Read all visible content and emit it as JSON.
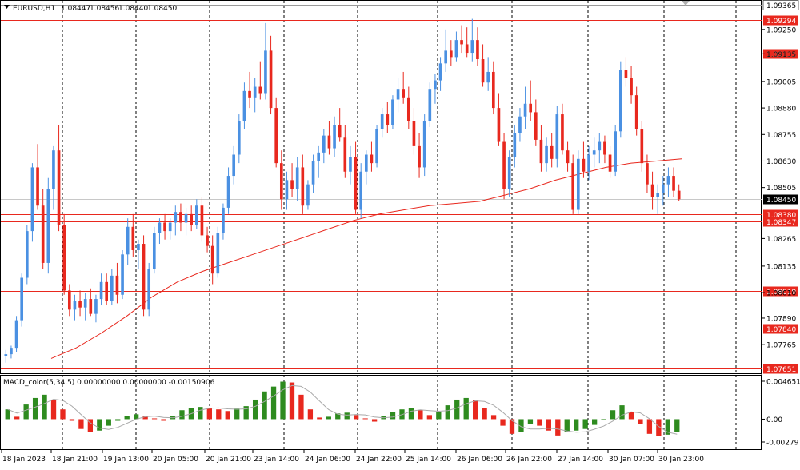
{
  "header": {
    "symbol": "EURUSD,H1",
    "open": "1.08447",
    "high": "1.08456",
    "low": "1.08440",
    "close": "1.08450"
  },
  "macd": {
    "title": "MACD_color(5,34,5) 0.00000000 0.00000000 -0.00150906",
    "ticks": [
      "0.0046515",
      "0.00",
      "-0.0027973"
    ],
    "values": [
      0.0012,
      0.0003,
      0.0018,
      0.0026,
      0.003,
      0.0024,
      0.0012,
      -0.0002,
      -0.0012,
      -0.0016,
      -0.0014,
      -0.0008,
      -0.0002,
      0.0004,
      0.0006,
      0.0004,
      0.0001,
      -0.0002,
      0.0004,
      0.0011,
      0.0014,
      0.0015,
      0.0014,
      0.0012,
      0.001,
      0.0013,
      0.0016,
      0.0024,
      0.0034,
      0.004,
      0.0046,
      0.0045,
      0.003,
      0.0012,
      0.0002,
      0.0003,
      0.0007,
      0.0008,
      0.0005,
      0.0001,
      -0.0003,
      0.0004,
      0.0009,
      0.0012,
      0.0014,
      0.0011,
      0.0005,
      0.0009,
      0.0017,
      0.0024,
      0.0026,
      0.0023,
      0.0014,
      0.0005,
      -0.0008,
      -0.0018,
      -0.0016,
      -0.0006,
      -0.0008,
      -0.0014,
      -0.002,
      -0.0016,
      -0.0014,
      -0.0012,
      -0.0007,
      -0.0001,
      0.0011,
      0.0017,
      0.0009,
      -0.0006,
      -0.0018,
      -0.0021,
      -0.0019,
      -0.0016
    ],
    "colors": {
      "up": "#2e8b1f",
      "down": "#e8281e",
      "signal": "#a9a9a9"
    }
  },
  "price_axis": {
    "ticks": [
      "1.09250",
      "1.09135",
      "1.09005",
      "1.08880",
      "1.08755",
      "1.08630",
      "1.08505",
      "1.08265",
      "1.08135",
      "1.08010",
      "1.07890",
      "1.07765"
    ],
    "range": [
      1.0763,
      1.09385
    ]
  },
  "hlines": [
    {
      "price": 1.09365,
      "label": "1.09365",
      "style": "gray"
    },
    {
      "price": 1.09294,
      "label": "1.09294",
      "style": "red"
    },
    {
      "price": 1.09135,
      "label": "1.09135",
      "style": "red"
    },
    {
      "price": 1.0838,
      "label": "1.08380",
      "style": "red"
    },
    {
      "price": 1.08347,
      "label": "1.08347",
      "style": "red"
    },
    {
      "price": 1.08019,
      "label": "1.08019",
      "style": "red"
    },
    {
      "price": 1.0784,
      "label": "1.07840",
      "style": "red"
    },
    {
      "price": 1.07651,
      "label": "1.07651",
      "style": "red"
    }
  ],
  "current_price": {
    "price": 1.0845,
    "label": "1.08450"
  },
  "time_axis": [
    "18 Jan 2023",
    "18 Jan 21:00",
    "19 Jan 13:00",
    "20 Jan 05:00",
    "20 Jan 21:00",
    "23 Jan 14:00",
    "24 Jan 06:00",
    "24 Jan 22:00",
    "25 Jan 14:00",
    "26 Jan 06:00",
    "26 Jan 22:00",
    "27 Jan 14:00",
    "30 Jan 07:00",
    "30 Jan 23:00"
  ],
  "colors": {
    "bull": "#4a90e2",
    "bear": "#e8281e",
    "ma": "#e8281e",
    "level": "#e8281e",
    "grid": "#000000",
    "current": "#c8c8c8"
  },
  "chart_data": {
    "type": "candlestick",
    "title": "EURUSD,H1",
    "ylim": [
      1.0763,
      1.09385
    ],
    "ohlc": [
      [
        1.0771,
        1.0774,
        1.0768,
        1.0772
      ],
      [
        1.0772,
        1.0776,
        1.077,
        1.0775
      ],
      [
        1.0775,
        1.079,
        1.0773,
        1.0788
      ],
      [
        1.0788,
        1.081,
        1.0785,
        1.0808
      ],
      [
        1.0808,
        1.0833,
        1.0805,
        1.083
      ],
      [
        1.083,
        1.0862,
        1.0825,
        1.086
      ],
      [
        1.086,
        1.0871,
        1.084,
        1.0842
      ],
      [
        1.0842,
        1.085,
        1.0812,
        1.0815
      ],
      [
        1.0815,
        1.0855,
        1.081,
        1.085
      ],
      [
        1.085,
        1.087,
        1.084,
        1.0868
      ],
      [
        1.0868,
        1.088,
        1.083,
        1.0833
      ],
      [
        1.0833,
        1.0838,
        1.08,
        1.0802
      ],
      [
        1.0802,
        1.0805,
        1.079,
        1.0793
      ],
      [
        1.0793,
        1.08,
        1.0788,
        1.0797
      ],
      [
        1.0797,
        1.0802,
        1.079,
        1.0794
      ],
      [
        1.0794,
        1.0801,
        1.0788,
        1.0798
      ],
      [
        1.0798,
        1.0803,
        1.079,
        1.0791
      ],
      [
        1.0791,
        1.08,
        1.0787,
        1.0798
      ],
      [
        1.0798,
        1.081,
        1.0795,
        1.0806
      ],
      [
        1.0806,
        1.081,
        1.0795,
        1.0797
      ],
      [
        1.0797,
        1.0812,
        1.0795,
        1.0809
      ],
      [
        1.0809,
        1.0815,
        1.0796,
        1.08
      ],
      [
        1.08,
        1.0821,
        1.0798,
        1.0819
      ],
      [
        1.0819,
        1.0836,
        1.0814,
        1.0832
      ],
      [
        1.0832,
        1.0838,
        1.0818,
        1.0821
      ],
      [
        1.0821,
        1.0826,
        1.0812,
        1.0824
      ],
      [
        1.0824,
        1.0828,
        1.079,
        1.0793
      ],
      [
        1.0793,
        1.0815,
        1.079,
        1.0812
      ],
      [
        1.0812,
        1.0832,
        1.081,
        1.0829
      ],
      [
        1.0829,
        1.0836,
        1.0824,
        1.0834
      ],
      [
        1.0834,
        1.0838,
        1.0826,
        1.083
      ],
      [
        1.083,
        1.0836,
        1.0826,
        1.0834
      ],
      [
        1.0834,
        1.0842,
        1.0828,
        1.0839
      ],
      [
        1.0839,
        1.0843,
        1.083,
        1.0834
      ],
      [
        1.0834,
        1.0841,
        1.0828,
        1.0838
      ],
      [
        1.0838,
        1.0842,
        1.083,
        1.0833
      ],
      [
        1.0833,
        1.0845,
        1.0831,
        1.0842
      ],
      [
        1.0842,
        1.0846,
        1.0825,
        1.0828
      ],
      [
        1.0828,
        1.0832,
        1.082,
        1.0823
      ],
      [
        1.0823,
        1.0828,
        1.0805,
        1.081
      ],
      [
        1.081,
        1.0832,
        1.0808,
        1.0829
      ],
      [
        1.0829,
        1.0843,
        1.0826,
        1.0841
      ],
      [
        1.0841,
        1.086,
        1.0838,
        1.0856
      ],
      [
        1.0856,
        1.087,
        1.0852,
        1.0866
      ],
      [
        1.0866,
        1.0885,
        1.0862,
        1.0882
      ],
      [
        1.0882,
        1.09,
        1.0878,
        1.0896
      ],
      [
        1.0896,
        1.0905,
        1.0888,
        1.0893
      ],
      [
        1.0893,
        1.0902,
        1.0886,
        1.0898
      ],
      [
        1.0898,
        1.091,
        1.0892,
        1.0895
      ],
      [
        1.0895,
        1.0928,
        1.0892,
        1.0915
      ],
      [
        1.0915,
        1.0922,
        1.0885,
        1.0888
      ],
      [
        1.0888,
        1.0893,
        1.086,
        1.0862
      ],
      [
        1.0862,
        1.0868,
        1.084,
        1.0845
      ],
      [
        1.0845,
        1.0858,
        1.084,
        1.0854
      ],
      [
        1.0854,
        1.0862,
        1.0846,
        1.085
      ],
      [
        1.085,
        1.0865,
        1.0844,
        1.086
      ],
      [
        1.086,
        1.0866,
        1.0838,
        1.0842
      ],
      [
        1.0842,
        1.0854,
        1.084,
        1.0852
      ],
      [
        1.0852,
        1.0866,
        1.0848,
        1.0863
      ],
      [
        1.0863,
        1.087,
        1.0855,
        1.0867
      ],
      [
        1.0867,
        1.0878,
        1.0862,
        1.0875
      ],
      [
        1.0875,
        1.0882,
        1.0866,
        1.0869
      ],
      [
        1.0869,
        1.0884,
        1.0865,
        1.088
      ],
      [
        1.088,
        1.0888,
        1.0872,
        1.0874
      ],
      [
        1.0874,
        1.088,
        1.0855,
        1.0858
      ],
      [
        1.0858,
        1.087,
        1.0852,
        1.0865
      ],
      [
        1.0865,
        1.0872,
        1.0838,
        1.084
      ],
      [
        1.084,
        1.0862,
        1.0836,
        1.0858
      ],
      [
        1.0858,
        1.0868,
        1.0852,
        1.0866
      ],
      [
        1.0866,
        1.0872,
        1.0858,
        1.0862
      ],
      [
        1.0862,
        1.088,
        1.086,
        1.0878
      ],
      [
        1.0878,
        1.0888,
        1.0874,
        1.0885
      ],
      [
        1.0885,
        1.0891,
        1.0876,
        1.088
      ],
      [
        1.088,
        1.0894,
        1.0878,
        1.0892
      ],
      [
        1.0892,
        1.0902,
        1.0886,
        1.0897
      ],
      [
        1.0897,
        1.0905,
        1.089,
        1.0893
      ],
      [
        1.0893,
        1.0898,
        1.0878,
        1.0882
      ],
      [
        1.0882,
        1.0888,
        1.0866,
        1.087
      ],
      [
        1.087,
        1.0876,
        1.0855,
        1.086
      ],
      [
        1.086,
        1.0885,
        1.0856,
        1.0882
      ],
      [
        1.0882,
        1.09,
        1.0879,
        1.0897
      ],
      [
        1.0897,
        1.0904,
        1.089,
        1.0901
      ],
      [
        1.0901,
        1.0912,
        1.0896,
        1.0909
      ],
      [
        1.0909,
        1.0925,
        1.0905,
        1.0915
      ],
      [
        1.0915,
        1.092,
        1.0908,
        1.0912
      ],
      [
        1.0912,
        1.0924,
        1.091,
        1.092
      ],
      [
        1.092,
        1.0927,
        1.0914,
        1.0918
      ],
      [
        1.0918,
        1.0926,
        1.0912,
        1.0914
      ],
      [
        1.0914,
        1.093,
        1.091,
        1.092
      ],
      [
        1.092,
        1.0926,
        1.0908,
        1.0911
      ],
      [
        1.0911,
        1.0918,
        1.0898,
        1.09
      ],
      [
        1.09,
        1.0912,
        1.0896,
        1.0905
      ],
      [
        1.0905,
        1.091,
        1.0885,
        1.0888
      ],
      [
        1.0888,
        1.0895,
        1.087,
        1.0872
      ],
      [
        1.0872,
        1.0876,
        1.0845,
        1.085
      ],
      [
        1.085,
        1.0868,
        1.0846,
        1.0865
      ],
      [
        1.0865,
        1.088,
        1.086,
        1.0876
      ],
      [
        1.0876,
        1.0888,
        1.0872,
        1.0884
      ],
      [
        1.0884,
        1.0898,
        1.0878,
        1.089
      ],
      [
        1.089,
        1.0901,
        1.0882,
        1.0886
      ],
      [
        1.0886,
        1.0892,
        1.087,
        1.0873
      ],
      [
        1.0873,
        1.088,
        1.0858,
        1.0862
      ],
      [
        1.0862,
        1.0874,
        1.0858,
        1.087
      ],
      [
        1.087,
        1.0876,
        1.086,
        1.0864
      ],
      [
        1.0864,
        1.0889,
        1.086,
        1.0885
      ],
      [
        1.0885,
        1.089,
        1.0866,
        1.0868
      ],
      [
        1.0868,
        1.0872,
        1.0858,
        1.0862
      ],
      [
        1.0862,
        1.0866,
        1.0838,
        1.084
      ],
      [
        1.084,
        1.0868,
        1.0838,
        1.0864
      ],
      [
        1.0864,
        1.0872,
        1.0855,
        1.0858
      ],
      [
        1.0858,
        1.087,
        1.0854,
        1.0866
      ],
      [
        1.0866,
        1.0874,
        1.086,
        1.0868
      ],
      [
        1.0868,
        1.0876,
        1.0862,
        1.0872
      ],
      [
        1.0872,
        1.0875,
        1.0862,
        1.0866
      ],
      [
        1.0866,
        1.087,
        1.0855,
        1.0858
      ],
      [
        1.0858,
        1.088,
        1.0856,
        1.0877
      ],
      [
        1.0877,
        1.091,
        1.0874,
        1.0906
      ],
      [
        1.0906,
        1.0912,
        1.0898,
        1.0902
      ],
      [
        1.0902,
        1.0908,
        1.089,
        1.0894
      ],
      [
        1.0894,
        1.0898,
        1.0875,
        1.0878
      ],
      [
        1.0878,
        1.0882,
        1.0858,
        1.0862
      ],
      [
        1.0862,
        1.0866,
        1.0848,
        1.0852
      ],
      [
        1.0852,
        1.0858,
        1.084,
        1.0846
      ],
      [
        1.0846,
        1.0852,
        1.0838,
        1.0848
      ],
      [
        1.0848,
        1.0856,
        1.0842,
        1.0852
      ],
      [
        1.0852,
        1.086,
        1.0846,
        1.0856
      ],
      [
        1.0856,
        1.086,
        1.0846,
        1.0849
      ],
      [
        1.0849,
        1.0852,
        1.0844,
        1.0845
      ]
    ],
    "ma_values": [
      1.077,
      1.0775,
      1.0782,
      1.079,
      1.0799,
      1.0806,
      1.0811,
      1.0815,
      1.0819,
      1.0823,
      1.0827,
      1.0831,
      1.0835,
      1.0838,
      1.084,
      1.0842,
      1.0843,
      1.0844,
      1.0847,
      1.085,
      1.0854,
      1.0857,
      1.086,
      1.0862,
      1.0863,
      1.0864
    ],
    "xlabel": "",
    "ylabel": ""
  }
}
